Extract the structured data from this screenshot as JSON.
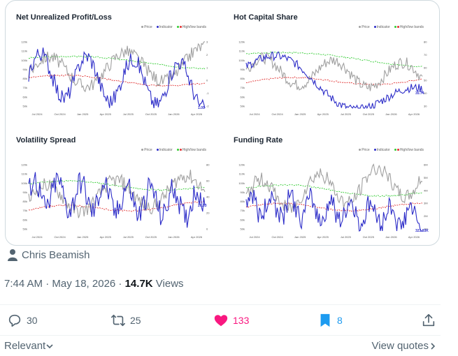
{
  "charts": [
    {
      "title": "Net Unrealized Profit/Loss",
      "legend": {
        "price": "Price",
        "indicator": "Indicator",
        "bands": "High/low bands"
      },
      "value_label": "1.05",
      "x_ticks": [
        "Jul 2024",
        "Oct 2024",
        "Jan 2025",
        "Apr 2025",
        "Jul 2025",
        "Oct 2025",
        "Jan 2026",
        "Apr 2026"
      ],
      "y_left_ticks": [
        "120k",
        "110k",
        "100k",
        "90k",
        "80k",
        "70k",
        "60k",
        "50k"
      ],
      "y_right_ticks": [
        "3",
        "2",
        "1",
        "0",
        "-1",
        "-2"
      ]
    },
    {
      "title": "Hot Capital Share",
      "legend": {
        "price": "Price",
        "indicator": "Indicator",
        "bands": "High/low bands"
      },
      "value_label": "35.74",
      "x_ticks": [
        "Jul 2024",
        "Oct 2024",
        "Jan 2025",
        "Apr 2025",
        "Jul 2025",
        "Oct 2025",
        "Jan 2026",
        "Apr 2026"
      ],
      "y_left_ticks": [
        "120k",
        "110k",
        "100k",
        "90k",
        "80k",
        "70k",
        "60k",
        "50k"
      ],
      "y_right_ticks": [
        "80",
        "70",
        "60",
        "50",
        "40",
        "30"
      ]
    },
    {
      "title": "Volatility Spread",
      "legend": {
        "price": "Price",
        "indicator": "Indicator",
        "bands": "High/low bands"
      },
      "value_label": "26.63",
      "x_ticks": [
        "Jul 2024",
        "Oct 2024",
        "Jan 2025",
        "Apr 2025",
        "Jul 2025",
        "Oct 2025",
        "Jan 2026",
        "Apr 2026"
      ],
      "y_left_ticks": [
        "120k",
        "110k",
        "100k",
        "90k",
        "80k",
        "70k",
        "60k",
        "50k"
      ],
      "y_right_ticks": [
        "80",
        "60",
        "40",
        "20",
        "0"
      ]
    },
    {
      "title": "Funding Rate",
      "legend": {
        "price": "Price",
        "indicator": "Indicator",
        "bands": "High/low bands"
      },
      "value_label": "323.83K",
      "x_ticks": [
        "Jul 2024",
        "Oct 2024",
        "Jan 2025",
        "Apr 2025",
        "Jul 2025",
        "Oct 2025",
        "Jan 2026",
        "Apr 2026"
      ],
      "y_left_ticks": [
        "120k",
        "110k",
        "100k",
        "90k",
        "80k",
        "70k",
        "60k",
        "50k"
      ],
      "y_right_ticks": [
        "6M",
        "5M",
        "4M",
        "3M",
        "2M",
        "1M"
      ]
    }
  ],
  "colors": {
    "price": "#a0a0a0",
    "indicator": "#2c2cc8",
    "band_high": "#33cc33",
    "band_low": "#e03030",
    "like": "#f91880",
    "bookmark": "#1d9bf0"
  },
  "author": "Chris Beamish",
  "time": "7:44 AM · May 18, 2026 · ",
  "views_count": "14.7K",
  "views_label": " Views",
  "actions": {
    "replies": "30",
    "reposts": "25",
    "likes": "133",
    "bookmarks": "8"
  },
  "sort_label": "Relevant",
  "view_quotes_label": "View quotes"
}
